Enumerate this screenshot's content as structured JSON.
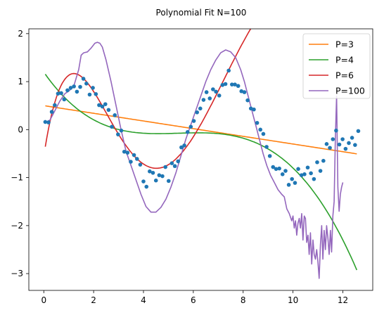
{
  "chart_data": {
    "type": "line",
    "title": "Polynomial Fit N=100",
    "xlabel": "",
    "ylabel": "",
    "xlim": [
      -0.6,
      13.2
    ],
    "ylim": [
      -3.35,
      2.1
    ],
    "xticks": [
      0,
      2,
      4,
      6,
      8,
      10,
      12
    ],
    "yticks": [
      -3,
      -2,
      -1,
      0,
      1,
      2
    ],
    "xtick_labels": [
      "0",
      "2",
      "4",
      "6",
      "8",
      "10",
      "12"
    ],
    "ytick_labels": [
      "−3",
      "−2",
      "−1",
      "0",
      "1",
      "2"
    ],
    "grid": false,
    "legend_position": "top-right",
    "scatter": {
      "color": "#1f77b4",
      "x": [
        0.06,
        0.19,
        0.32,
        0.44,
        0.57,
        0.7,
        0.82,
        0.95,
        1.08,
        1.21,
        1.33,
        1.46,
        1.59,
        1.71,
        1.84,
        1.97,
        2.09,
        2.22,
        2.35,
        2.47,
        2.6,
        2.73,
        2.85,
        2.98,
        3.11,
        3.23,
        3.36,
        3.49,
        3.62,
        3.74,
        3.87,
        4.0,
        4.12,
        4.25,
        4.38,
        4.5,
        4.63,
        4.76,
        4.88,
        5.01,
        5.14,
        5.26,
        5.39,
        5.52,
        5.64,
        5.77,
        5.9,
        6.02,
        6.15,
        6.28,
        6.41,
        6.53,
        6.66,
        6.79,
        6.91,
        7.04,
        7.17,
        7.29,
        7.42,
        7.55,
        7.67,
        7.8,
        7.93,
        8.05,
        8.18,
        8.31,
        8.43,
        8.56,
        8.69,
        8.81,
        8.94,
        9.07,
        9.2,
        9.32,
        9.45,
        9.58,
        9.7,
        9.83,
        9.96,
        10.08,
        10.21,
        10.34,
        10.46,
        10.59,
        10.72,
        10.84,
        10.97,
        11.1,
        11.22,
        11.35,
        11.48,
        11.6,
        11.73,
        11.86,
        11.99,
        12.11,
        12.24,
        12.37,
        12.49,
        12.62
      ],
      "y": [
        0.16,
        0.15,
        0.37,
        0.51,
        0.75,
        0.76,
        0.63,
        0.82,
        0.87,
        0.9,
        0.79,
        0.89,
        1.06,
        0.96,
        0.73,
        0.87,
        0.74,
        0.51,
        0.48,
        0.53,
        0.41,
        0.06,
        0.3,
        -0.1,
        -0.02,
        -0.46,
        -0.48,
        -0.67,
        -0.53,
        -0.61,
        -0.73,
        -1.08,
        -1.19,
        -0.87,
        -0.9,
        -1.06,
        -0.95,
        -0.97,
        -0.78,
        -1.07,
        -0.7,
        -0.76,
        -0.66,
        -0.37,
        -0.33,
        -0.05,
        0.06,
        0.18,
        0.36,
        0.44,
        0.62,
        0.78,
        0.65,
        0.84,
        0.79,
        0.71,
        0.93,
        0.95,
        1.23,
        0.94,
        0.94,
        0.91,
        0.8,
        0.78,
        0.61,
        0.44,
        0.42,
        0.14,
        0.0,
        -0.09,
        -0.36,
        -0.55,
        -0.78,
        -0.82,
        -0.81,
        -0.93,
        -0.86,
        -1.15,
        -1.03,
        -1.11,
        -0.82,
        -0.95,
        -0.93,
        -0.79,
        -0.91,
        -1.03,
        -0.68,
        -0.86,
        -0.65,
        -0.3,
        -0.38,
        -0.2,
        -0.02,
        -0.31,
        -0.2,
        -0.4,
        -0.28,
        -0.17,
        -0.32,
        -0.03
      ]
    },
    "series": [
      {
        "name": "P=3",
        "color": "#ff7f0e",
        "coef": [
          0.5,
          -0.08,
          0,
          0
        ]
      },
      {
        "name": "P=4",
        "color": "#2ca02c",
        "coef": [
          1.2,
          -0.75,
          0.145,
          -0.0095,
          5e-05
        ]
      },
      {
        "name": "P=6",
        "color": "#d62728",
        "coef": [
          -0.55,
          3.37,
          -2.1,
          0.45,
          -0.04,
          0.0014,
          -1e-05
        ]
      },
      {
        "name": "P=100",
        "color": "#9467bd",
        "x": [
          0.06,
          0.25,
          0.45,
          0.65,
          0.85,
          1.0,
          1.2,
          1.4,
          1.5,
          1.6,
          1.75,
          1.9,
          2.05,
          2.15,
          2.25,
          2.35,
          2.5,
          2.7,
          2.9,
          3.1,
          3.3,
          3.5,
          3.7,
          3.9,
          4.1,
          4.3,
          4.5,
          4.7,
          4.9,
          5.1,
          5.3,
          5.5,
          5.7,
          5.9,
          6.1,
          6.3,
          6.5,
          6.7,
          6.9,
          7.1,
          7.3,
          7.5,
          7.7,
          7.9,
          8.05,
          8.2,
          8.35,
          8.5,
          8.65,
          8.8,
          8.95,
          9.1,
          9.25,
          9.4,
          9.55,
          9.65,
          9.75,
          9.85,
          9.95,
          10.0,
          10.05,
          10.1,
          10.15,
          10.2,
          10.25,
          10.3,
          10.35,
          10.4,
          10.45,
          10.5,
          10.55,
          10.6,
          10.65,
          10.7,
          10.75,
          10.8,
          10.85,
          10.9,
          10.95,
          11.0,
          11.05,
          11.1,
          11.15,
          11.2,
          11.25,
          11.3,
          11.35,
          11.4,
          11.45,
          11.5,
          11.55,
          11.6,
          11.65,
          11.7,
          11.75,
          11.8,
          11.85,
          11.9,
          11.95,
          12.0
        ],
        "y": [
          0.15,
          0.2,
          0.4,
          0.6,
          0.75,
          0.8,
          0.9,
          1.25,
          1.55,
          1.6,
          1.62,
          1.7,
          1.8,
          1.82,
          1.8,
          1.72,
          1.45,
          1.0,
          0.5,
          0.0,
          -0.45,
          -0.75,
          -1.05,
          -1.35,
          -1.6,
          -1.72,
          -1.72,
          -1.62,
          -1.45,
          -1.2,
          -0.9,
          -0.55,
          -0.2,
          0.1,
          0.4,
          0.7,
          1.0,
          1.25,
          1.45,
          1.6,
          1.66,
          1.62,
          1.5,
          1.25,
          1.0,
          0.7,
          0.4,
          0.1,
          -0.2,
          -0.5,
          -0.75,
          -0.95,
          -1.1,
          -1.25,
          -1.35,
          -1.4,
          -1.65,
          -1.75,
          -1.9,
          -1.8,
          -2.05,
          -1.9,
          -2.2,
          -1.95,
          -1.85,
          -2.05,
          -1.75,
          -2.3,
          -1.8,
          -1.85,
          -2.35,
          -2.2,
          -2.6,
          -2.15,
          -2.8,
          -2.3,
          -2.6,
          -2.7,
          -2.5,
          -2.75,
          -3.1,
          -2.4,
          -2.0,
          -2.7,
          -2.1,
          -2.5,
          -2.0,
          -2.25,
          -2.6,
          -2.1,
          -2.55,
          -1.8,
          -1.5,
          -0.2,
          0.7,
          -1.2,
          -1.7,
          -1.35,
          -1.2,
          -1.1
        ]
      }
    ]
  }
}
